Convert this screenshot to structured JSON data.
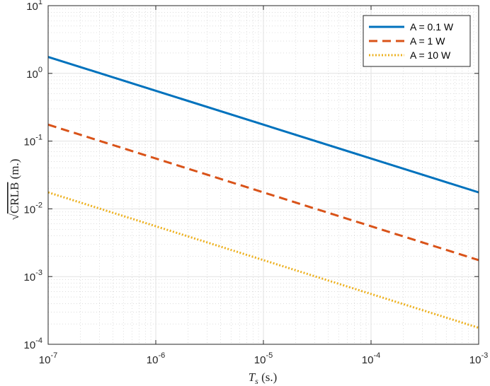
{
  "chart_data": {
    "type": "line",
    "xscale": "log",
    "yscale": "log",
    "xlim": [
      1e-07,
      0.001
    ],
    "ylim": [
      0.0001,
      10
    ],
    "grid": true,
    "minor_grid": true,
    "legend_position": "top-right",
    "xlabel": {
      "main": "T",
      "sub": "s",
      "rest": " (s.)"
    },
    "ylabel": {
      "radical": "√",
      "main": "CRLB",
      "rest": " (m.)"
    },
    "x_ticks": [
      {
        "value": 1e-07,
        "base": "10",
        "exp": "-7"
      },
      {
        "value": 1e-06,
        "base": "10",
        "exp": "-6"
      },
      {
        "value": 1e-05,
        "base": "10",
        "exp": "-5"
      },
      {
        "value": 0.0001,
        "base": "10",
        "exp": "-4"
      },
      {
        "value": 0.001,
        "base": "10",
        "exp": "-3"
      }
    ],
    "y_ticks": [
      {
        "value": 0.0001,
        "base": "10",
        "exp": "-4"
      },
      {
        "value": 0.001,
        "base": "10",
        "exp": "-3"
      },
      {
        "value": 0.01,
        "base": "10",
        "exp": "-2"
      },
      {
        "value": 0.1,
        "base": "10",
        "exp": "-1"
      },
      {
        "value": 1,
        "base": "10",
        "exp": "0"
      },
      {
        "value": 10,
        "base": "10",
        "exp": "1"
      }
    ],
    "series": [
      {
        "name": "A = 0.1 W",
        "color": "#0072BD",
        "style": "solid",
        "x": [
          1e-07,
          0.001
        ],
        "y": [
          1.75,
          0.0175
        ]
      },
      {
        "name": "A = 1 W",
        "color": "#D95319",
        "style": "dashed",
        "x": [
          1e-07,
          0.001
        ],
        "y": [
          0.175,
          0.00175
        ]
      },
      {
        "name": "A = 10 W",
        "color": "#EDB120",
        "style": "dotted",
        "x": [
          1e-07,
          0.001
        ],
        "y": [
          0.0175,
          0.000175
        ]
      }
    ]
  }
}
